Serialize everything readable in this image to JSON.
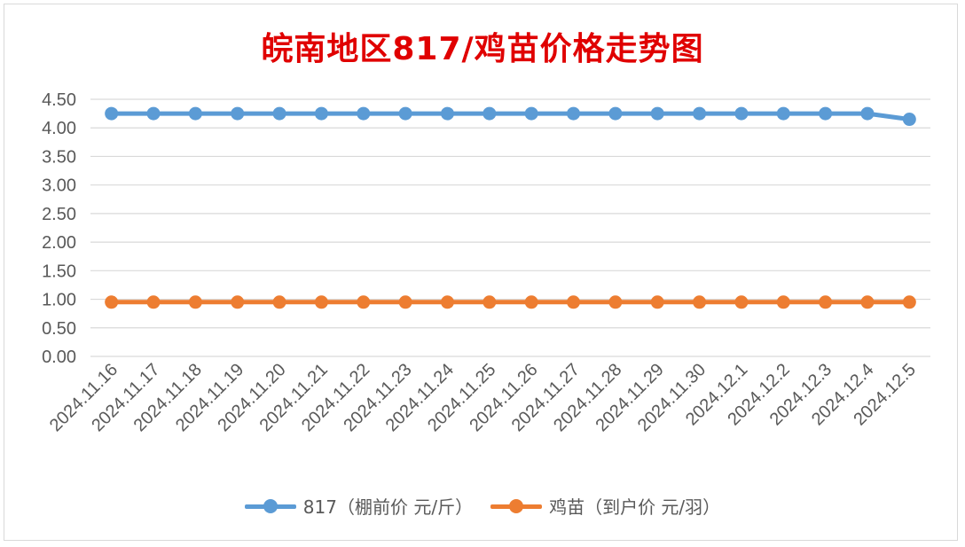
{
  "title": "皖南地区817/鸡苗价格走势图",
  "chart_data": {
    "type": "line",
    "categories": [
      "2024.11.16",
      "2024.11.17",
      "2024.11.18",
      "2024.11.19",
      "2024.11.20",
      "2024.11.21",
      "2024.11.22",
      "2024.11.23",
      "2024.11.24",
      "2024.11.25",
      "2024.11.26",
      "2024.11.27",
      "2024.11.28",
      "2024.11.29",
      "2024.11.30",
      "2024.12.1",
      "2024.12.2",
      "2024.12.3",
      "2024.12.4",
      "2024.12.5"
    ],
    "series": [
      {
        "name": "817（棚前价 元/斤）",
        "color": "#5b9bd5",
        "values": [
          4.25,
          4.25,
          4.25,
          4.25,
          4.25,
          4.25,
          4.25,
          4.25,
          4.25,
          4.25,
          4.25,
          4.25,
          4.25,
          4.25,
          4.25,
          4.25,
          4.25,
          4.25,
          4.25,
          4.15
        ]
      },
      {
        "name": "鸡苗（到户价 元/羽）",
        "color": "#ed7d31",
        "values": [
          0.95,
          0.95,
          0.95,
          0.95,
          0.95,
          0.95,
          0.95,
          0.95,
          0.95,
          0.95,
          0.95,
          0.95,
          0.95,
          0.95,
          0.95,
          0.95,
          0.95,
          0.95,
          0.95,
          0.95
        ]
      }
    ],
    "ylim": [
      0,
      4.5
    ],
    "yticks": [
      "0.00",
      "0.50",
      "1.00",
      "1.50",
      "2.00",
      "2.50",
      "3.00",
      "3.50",
      "4.00",
      "4.50"
    ],
    "grid": true,
    "legend_position": "bottom"
  }
}
